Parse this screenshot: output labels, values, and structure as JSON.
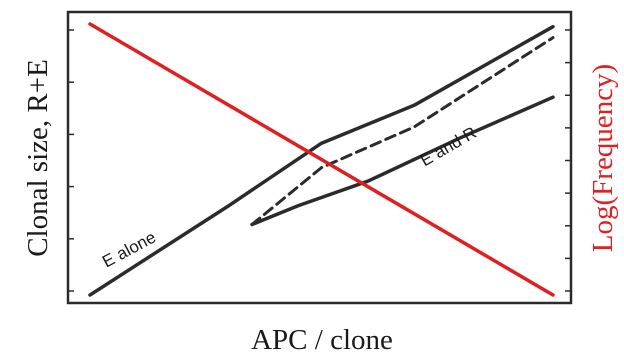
{
  "chart_data": {
    "type": "line",
    "xlabel": "APC / clone",
    "ylabel_left": "Clonal size, R+E",
    "ylabel_right": "Log(Frequency)",
    "grid": false,
    "x_ticks_shown": false,
    "xlim": [
      0,
      1
    ],
    "ylim": [
      0,
      1
    ],
    "series": [
      {
        "label_ref": "annotations.0",
        "style": "solid",
        "color": "#2b2b2b",
        "x": [
          0.0,
          0.3,
          0.5,
          0.7,
          1.0
        ],
        "y": [
          0.0,
          0.33,
          0.56,
          0.7,
          0.99
        ]
      },
      {
        "style": "dashed",
        "color": "#2b2b2b",
        "x": [
          0.35,
          0.5,
          0.7,
          1.0
        ],
        "y": [
          0.26,
          0.47,
          0.62,
          0.95
        ]
      },
      {
        "label_ref": "annotations.1",
        "style": "solid",
        "color": "#2b2b2b",
        "x": [
          0.35,
          0.45,
          0.6,
          0.8,
          1.0
        ],
        "y": [
          0.26,
          0.33,
          0.42,
          0.58,
          0.73
        ]
      },
      {
        "axis": "right",
        "style": "solid",
        "color": "#e02020",
        "x": [
          0.0,
          1.0
        ],
        "y": [
          1.0,
          0.0
        ]
      }
    ],
    "annotations": [
      {
        "text": "E alone",
        "x": 0.09,
        "y": 0.15,
        "angle": -28
      },
      {
        "text": "E and R",
        "x": 0.78,
        "y": 0.53,
        "angle": -30
      }
    ],
    "left_tick_count": 6,
    "right_tick_count": 9,
    "colors": {
      "axis": "#2b2b2b",
      "curve": "#2b2b2b",
      "frequency": "#e02020",
      "right_label": "#e02020"
    }
  }
}
